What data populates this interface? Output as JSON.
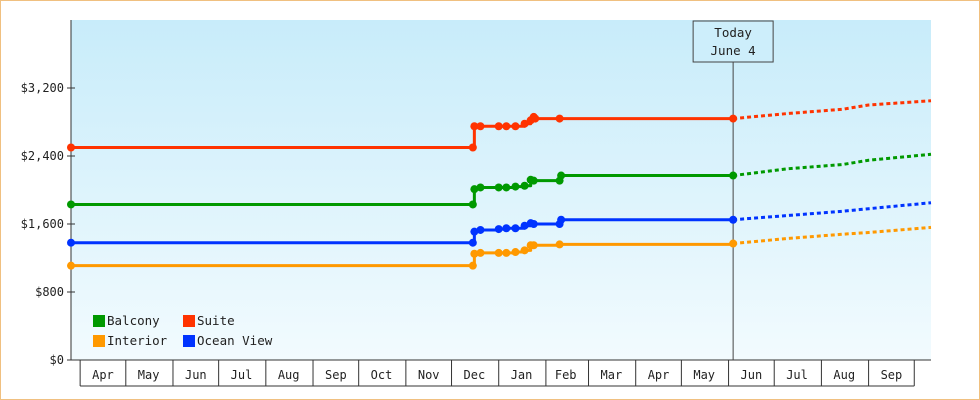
{
  "chart_data": {
    "type": "line",
    "title": "",
    "xlabel": "",
    "ylabel": "",
    "ylim": [
      0,
      4000
    ],
    "yticks": [
      {
        "value": 0,
        "label": "$0"
      },
      {
        "value": 800,
        "label": "$800"
      },
      {
        "value": 1600,
        "label": "$1,600"
      },
      {
        "value": 2400,
        "label": "$2,400"
      },
      {
        "value": 3200,
        "label": "$3,200"
      }
    ],
    "xlim": [
      "2018-03-26",
      "2019-10-12"
    ],
    "x_tick_labels": [
      {
        "date": "2018-04-16",
        "label": "Apr"
      },
      {
        "date": "2018-05-16",
        "label": "May"
      },
      {
        "date": "2018-06-16",
        "label": "Jun"
      },
      {
        "date": "2018-07-16",
        "label": "Jul"
      },
      {
        "date": "2018-08-16",
        "label": "Aug"
      },
      {
        "date": "2018-09-16",
        "label": "Sep"
      },
      {
        "date": "2018-10-16",
        "label": "Oct"
      },
      {
        "date": "2018-11-16",
        "label": "Nov"
      },
      {
        "date": "2018-12-16",
        "label": "Dec"
      },
      {
        "date": "2019-01-16",
        "label": "Jan"
      },
      {
        "date": "2019-02-14",
        "label": "Feb"
      },
      {
        "date": "2019-03-16",
        "label": "Mar"
      },
      {
        "date": "2019-04-16",
        "label": "Apr"
      },
      {
        "date": "2019-05-16",
        "label": "May"
      },
      {
        "date": "2019-06-16",
        "label": "Jun"
      },
      {
        "date": "2019-07-16",
        "label": "Jul"
      },
      {
        "date": "2019-08-16",
        "label": "Aug"
      },
      {
        "date": "2019-09-16",
        "label": "Sep"
      }
    ],
    "x_tick_boundaries": [
      "2018-04-01",
      "2018-05-01",
      "2018-06-01",
      "2018-07-01",
      "2018-08-01",
      "2018-09-01",
      "2018-10-01",
      "2018-11-01",
      "2018-12-01",
      "2019-01-01",
      "2019-02-01",
      "2019-03-01",
      "2019-04-01",
      "2019-05-01",
      "2019-06-01",
      "2019-07-01",
      "2019-08-01",
      "2019-09-01",
      "2019-10-01"
    ],
    "grid": false,
    "legend": "bottom-left",
    "annotation": {
      "date": "2019-06-04",
      "line1": "Today",
      "line2": "June 4"
    },
    "series": [
      {
        "name": "Suite",
        "color": "#ff3300",
        "step": true,
        "points": [
          {
            "date": "2018-03-26",
            "value": 2500
          },
          {
            "date": "2018-12-15",
            "value": 2500
          },
          {
            "date": "2018-12-16",
            "value": 2750
          },
          {
            "date": "2018-12-20",
            "value": 2750
          },
          {
            "date": "2019-01-01",
            "value": 2750
          },
          {
            "date": "2019-01-06",
            "value": 2750
          },
          {
            "date": "2019-01-12",
            "value": 2750
          },
          {
            "date": "2019-01-18",
            "value": 2780
          },
          {
            "date": "2019-01-22",
            "value": 2820
          },
          {
            "date": "2019-01-24",
            "value": 2860
          },
          {
            "date": "2019-01-25",
            "value": 2840
          },
          {
            "date": "2019-02-10",
            "value": 2840
          },
          {
            "date": "2019-06-04",
            "value": 2840
          }
        ],
        "forecast": [
          {
            "date": "2019-06-04",
            "value": 2840
          },
          {
            "date": "2019-07-10",
            "value": 2900
          },
          {
            "date": "2019-08-15",
            "value": 2950
          },
          {
            "date": "2019-09-01",
            "value": 3000
          },
          {
            "date": "2019-10-12",
            "value": 3050
          }
        ]
      },
      {
        "name": "Balcony",
        "color": "#009900",
        "step": true,
        "points": [
          {
            "date": "2018-03-26",
            "value": 1830
          },
          {
            "date": "2018-12-15",
            "value": 1830
          },
          {
            "date": "2018-12-16",
            "value": 2010
          },
          {
            "date": "2018-12-20",
            "value": 2030
          },
          {
            "date": "2019-01-01",
            "value": 2030
          },
          {
            "date": "2019-01-06",
            "value": 2030
          },
          {
            "date": "2019-01-12",
            "value": 2040
          },
          {
            "date": "2019-01-18",
            "value": 2050
          },
          {
            "date": "2019-01-22",
            "value": 2120
          },
          {
            "date": "2019-01-24",
            "value": 2110
          },
          {
            "date": "2019-02-10",
            "value": 2110
          },
          {
            "date": "2019-02-11",
            "value": 2170
          },
          {
            "date": "2019-06-04",
            "value": 2170
          }
        ],
        "forecast": [
          {
            "date": "2019-06-04",
            "value": 2170
          },
          {
            "date": "2019-07-10",
            "value": 2250
          },
          {
            "date": "2019-08-15",
            "value": 2300
          },
          {
            "date": "2019-09-01",
            "value": 2350
          },
          {
            "date": "2019-10-12",
            "value": 2420
          }
        ]
      },
      {
        "name": "Ocean View",
        "color": "#0033ff",
        "step": true,
        "points": [
          {
            "date": "2018-03-26",
            "value": 1380
          },
          {
            "date": "2018-12-15",
            "value": 1380
          },
          {
            "date": "2018-12-16",
            "value": 1510
          },
          {
            "date": "2018-12-20",
            "value": 1530
          },
          {
            "date": "2019-01-01",
            "value": 1540
          },
          {
            "date": "2019-01-06",
            "value": 1550
          },
          {
            "date": "2019-01-12",
            "value": 1550
          },
          {
            "date": "2019-01-18",
            "value": 1580
          },
          {
            "date": "2019-01-22",
            "value": 1610
          },
          {
            "date": "2019-01-24",
            "value": 1600
          },
          {
            "date": "2019-02-10",
            "value": 1600
          },
          {
            "date": "2019-02-11",
            "value": 1650
          },
          {
            "date": "2019-06-04",
            "value": 1650
          }
        ],
        "forecast": [
          {
            "date": "2019-06-04",
            "value": 1650
          },
          {
            "date": "2019-07-10",
            "value": 1700
          },
          {
            "date": "2019-08-15",
            "value": 1750
          },
          {
            "date": "2019-09-01",
            "value": 1780
          },
          {
            "date": "2019-10-12",
            "value": 1850
          }
        ]
      },
      {
        "name": "Interior",
        "color": "#ff9900",
        "step": true,
        "points": [
          {
            "date": "2018-03-26",
            "value": 1110
          },
          {
            "date": "2018-12-15",
            "value": 1110
          },
          {
            "date": "2018-12-16",
            "value": 1250
          },
          {
            "date": "2018-12-20",
            "value": 1260
          },
          {
            "date": "2019-01-01",
            "value": 1260
          },
          {
            "date": "2019-01-06",
            "value": 1260
          },
          {
            "date": "2019-01-12",
            "value": 1270
          },
          {
            "date": "2019-01-18",
            "value": 1290
          },
          {
            "date": "2019-01-22",
            "value": 1350
          },
          {
            "date": "2019-01-24",
            "value": 1350
          },
          {
            "date": "2019-02-10",
            "value": 1360
          },
          {
            "date": "2019-06-04",
            "value": 1370
          }
        ],
        "forecast": [
          {
            "date": "2019-06-04",
            "value": 1370
          },
          {
            "date": "2019-07-10",
            "value": 1430
          },
          {
            "date": "2019-08-15",
            "value": 1480
          },
          {
            "date": "2019-09-01",
            "value": 1500
          },
          {
            "date": "2019-10-12",
            "value": 1560
          }
        ]
      }
    ],
    "legend_rows": [
      [
        "Balcony",
        "Suite"
      ],
      [
        "Interior",
        "Ocean View"
      ]
    ],
    "colors": {
      "plot_bg_top": "#c8ecfa",
      "plot_bg_bottom": "#f2fbfe",
      "frame_border": "#f0c080"
    }
  }
}
